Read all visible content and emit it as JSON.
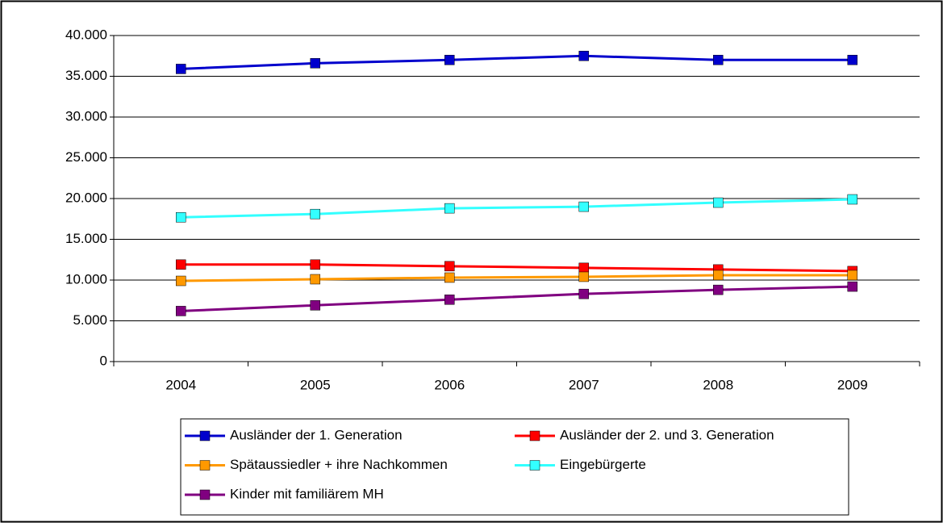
{
  "chart_data": {
    "type": "line",
    "categories": [
      "2004",
      "2005",
      "2006",
      "2007",
      "2008",
      "2009"
    ],
    "series": [
      {
        "name": "Ausländer der 1. Generation",
        "color": "#0000cc",
        "values": [
          35900,
          36600,
          37000,
          37500,
          37000,
          37000
        ]
      },
      {
        "name": "Ausländer der 2. und 3. Generation",
        "color": "#ff0000",
        "values": [
          11900,
          11900,
          11700,
          11500,
          11300,
          11100
        ]
      },
      {
        "name": "Spätaussiedler + ihre Nachkommen",
        "color": "#ff9900",
        "values": [
          9900,
          10100,
          10300,
          10400,
          10600,
          10600
        ]
      },
      {
        "name": "Eingebürgerte",
        "color": "#33ffff",
        "values": [
          17700,
          18100,
          18800,
          19000,
          19500,
          19900
        ]
      },
      {
        "name": "Kinder mit familiärem MH",
        "color": "#800080",
        "values": [
          6200,
          6900,
          7600,
          8300,
          8800,
          9200
        ]
      }
    ],
    "ylim": [
      0,
      40000
    ],
    "yticks": [
      0,
      {
        "value": 5000,
        "label": "5.000"
      },
      {
        "value": 10000,
        "label": "10.000"
      },
      {
        "value": 15000,
        "label": "15.000"
      },
      {
        "value": 20000,
        "label": "20.000"
      },
      {
        "value": 25000,
        "label": "25.000"
      },
      {
        "value": 30000,
        "label": "30.000"
      },
      {
        "value": 35000,
        "label": "35.000"
      },
      {
        "value": 40000,
        "label": "40.000"
      }
    ],
    "grid": true,
    "legend": "bottom"
  }
}
